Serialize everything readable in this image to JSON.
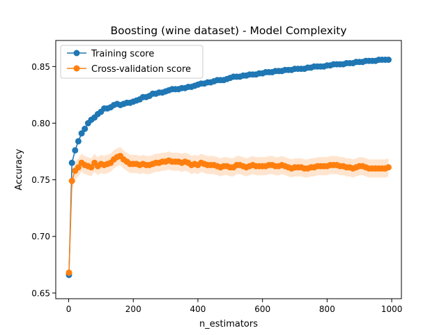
{
  "chart_data": {
    "type": "line",
    "title": "Boosting (wine dataset) - Model Complexity",
    "xlabel": "n_estimators",
    "ylabel": "Accuracy",
    "xlim": [
      -40,
      1030
    ],
    "ylim": [
      0.645,
      0.873
    ],
    "xticks": [
      0,
      200,
      400,
      600,
      800,
      1000
    ],
    "xtick_labels": [
      "0",
      "200",
      "400",
      "600",
      "800",
      "1000"
    ],
    "yticks": [
      0.65,
      0.7,
      0.75,
      0.8,
      0.85
    ],
    "ytick_labels": [
      "0.65",
      "0.70",
      "0.75",
      "0.80",
      "0.85"
    ],
    "grid": false,
    "legend_position": "upper left",
    "x": [
      1,
      10,
      20,
      30,
      40,
      50,
      60,
      70,
      80,
      90,
      100,
      110,
      120,
      130,
      140,
      150,
      160,
      170,
      180,
      190,
      200,
      210,
      220,
      230,
      240,
      250,
      260,
      270,
      280,
      290,
      300,
      310,
      320,
      330,
      340,
      350,
      360,
      370,
      380,
      390,
      400,
      410,
      420,
      430,
      440,
      450,
      460,
      470,
      480,
      490,
      500,
      510,
      520,
      530,
      540,
      550,
      560,
      570,
      580,
      590,
      600,
      610,
      620,
      630,
      640,
      650,
      660,
      670,
      680,
      690,
      700,
      710,
      720,
      730,
      740,
      750,
      760,
      770,
      780,
      790,
      800,
      810,
      820,
      830,
      840,
      850,
      860,
      870,
      880,
      890,
      900,
      910,
      920,
      930,
      940,
      950,
      960,
      970,
      980,
      990
    ],
    "series": [
      {
        "name": "Training score",
        "color": "#1f77b4",
        "values": [
          0.666,
          0.765,
          0.776,
          0.784,
          0.791,
          0.795,
          0.8,
          0.803,
          0.805,
          0.808,
          0.81,
          0.813,
          0.813,
          0.814,
          0.816,
          0.817,
          0.816,
          0.817,
          0.818,
          0.818,
          0.819,
          0.82,
          0.821,
          0.823,
          0.823,
          0.824,
          0.826,
          0.826,
          0.827,
          0.827,
          0.828,
          0.829,
          0.83,
          0.83,
          0.83,
          0.831,
          0.831,
          0.832,
          0.832,
          0.833,
          0.834,
          0.835,
          0.835,
          0.836,
          0.836,
          0.837,
          0.838,
          0.838,
          0.838,
          0.839,
          0.84,
          0.841,
          0.841,
          0.841,
          0.842,
          0.842,
          0.843,
          0.843,
          0.843,
          0.844,
          0.844,
          0.845,
          0.845,
          0.845,
          0.846,
          0.846,
          0.846,
          0.847,
          0.847,
          0.847,
          0.848,
          0.848,
          0.848,
          0.848,
          0.849,
          0.849,
          0.85,
          0.85,
          0.85,
          0.85,
          0.851,
          0.851,
          0.852,
          0.852,
          0.852,
          0.852,
          0.853,
          0.853,
          0.853,
          0.854,
          0.854,
          0.854,
          0.855,
          0.855,
          0.855,
          0.855,
          0.856,
          0.856,
          0.856,
          0.856
        ],
        "band": 0.002
      },
      {
        "name": "Cross-validation score",
        "color": "#ff7f0e",
        "values": [
          0.668,
          0.749,
          0.758,
          0.761,
          0.765,
          0.763,
          0.762,
          0.761,
          0.765,
          0.762,
          0.764,
          0.763,
          0.764,
          0.765,
          0.768,
          0.77,
          0.771,
          0.768,
          0.766,
          0.764,
          0.764,
          0.764,
          0.763,
          0.764,
          0.763,
          0.763,
          0.764,
          0.765,
          0.765,
          0.766,
          0.766,
          0.767,
          0.766,
          0.766,
          0.766,
          0.765,
          0.766,
          0.765,
          0.763,
          0.764,
          0.763,
          0.765,
          0.764,
          0.763,
          0.763,
          0.763,
          0.762,
          0.761,
          0.762,
          0.762,
          0.761,
          0.761,
          0.763,
          0.763,
          0.762,
          0.761,
          0.762,
          0.763,
          0.762,
          0.762,
          0.762,
          0.762,
          0.763,
          0.763,
          0.762,
          0.762,
          0.763,
          0.762,
          0.761,
          0.76,
          0.761,
          0.761,
          0.761,
          0.76,
          0.76,
          0.761,
          0.761,
          0.762,
          0.762,
          0.762,
          0.762,
          0.763,
          0.763,
          0.763,
          0.762,
          0.762,
          0.761,
          0.761,
          0.76,
          0.761,
          0.762,
          0.762,
          0.761,
          0.76,
          0.76,
          0.76,
          0.76,
          0.76,
          0.76,
          0.761
        ],
        "band": 0.008
      }
    ]
  }
}
